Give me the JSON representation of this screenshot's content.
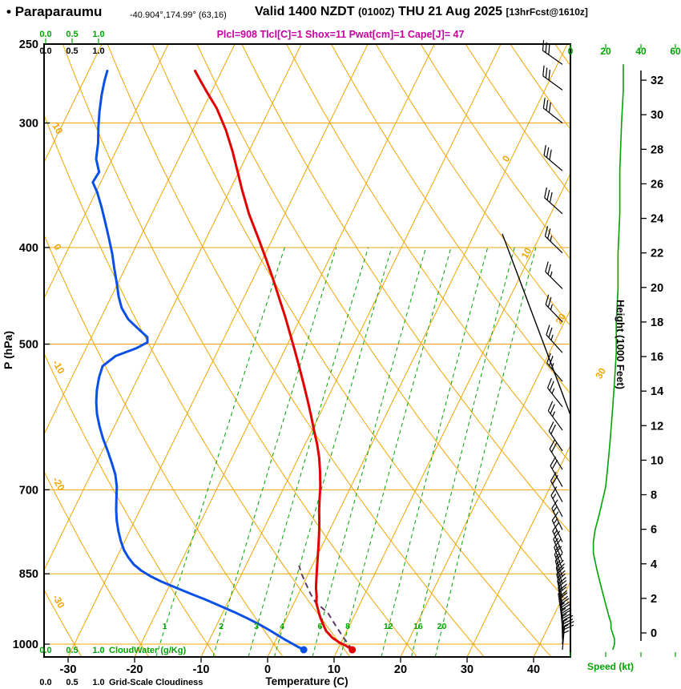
{
  "header": {
    "bullet": "•",
    "station": "Paraparaumu",
    "coords": "-40.904°,174.99°",
    "grid_ref": "(63,16)",
    "valid_prefix": "Valid 1400 NZDT",
    "valid_utc": "(0100Z)",
    "valid_date": "THU 21 Aug 2025",
    "forecast_ref": "[13hrFcst@1610z]",
    "params_line": "Plcl=908 Tlcl[C]=1 Shox=11 Pwat[cm]=1 Cape[J]= 47"
  },
  "colors": {
    "orange": "#f0a500",
    "green": "#00a400",
    "red": "#e10000",
    "blue": "#0a50e6",
    "magenta": "#c800a0",
    "parcel": "#5d3a66",
    "black": "#000000"
  },
  "chart_data": {
    "type": "skewt_log_p_sounding",
    "pressure_axis": {
      "label": "P (hPa)",
      "ticks": [
        250,
        300,
        400,
        500,
        700,
        850,
        1000
      ],
      "range": [
        250,
        1030
      ]
    },
    "temperature_axis": {
      "label": "Temperature (C)",
      "ticks": [
        -30,
        -20,
        -10,
        0,
        10,
        20,
        30,
        40
      ]
    },
    "height_axis": {
      "label": "Height (1000 Feet)",
      "ticks": [
        0,
        2,
        4,
        6,
        8,
        10,
        12,
        14,
        16,
        18,
        20,
        22,
        24,
        26,
        28,
        30,
        32
      ]
    },
    "speed_axis": {
      "label": "Speed (kt)",
      "ticks": [
        0,
        20,
        40,
        60
      ]
    },
    "cloudwater_axis": {
      "label": "CloudWater (g/Kg)",
      "ticks": [
        "0.0",
        "0.5",
        "1.0"
      ]
    },
    "cloudiness_axis": {
      "label": "Grid-Scale Cloudiness",
      "ticks": [
        "0.0",
        "0.5",
        "1.0"
      ]
    },
    "isotherm_inplot_labels": [
      0,
      10,
      20,
      30
    ],
    "dry_adiabat_labels": [
      10,
      0,
      -10,
      -20,
      -30
    ],
    "mixing_ratio_lines": [
      1,
      2,
      3,
      4,
      6,
      8,
      12,
      16,
      20
    ],
    "surface": {
      "pressure_hpa": 1013,
      "temp_c": 12.2,
      "dewpoint_c": 4.9
    },
    "temperature_profile": [
      [
        1013,
        12.2
      ],
      [
        1004,
        11.0
      ],
      [
        996,
        9.7
      ],
      [
        985,
        8.3
      ],
      [
        970,
        6.9
      ],
      [
        956,
        6.0
      ],
      [
        940,
        5.0
      ],
      [
        925,
        4.2
      ],
      [
        910,
        3.4
      ],
      [
        895,
        2.9
      ],
      [
        878,
        2.2
      ],
      [
        860,
        1.6
      ],
      [
        845,
        1.1
      ],
      [
        830,
        0.6
      ],
      [
        815,
        0.1
      ],
      [
        800,
        -0.4
      ],
      [
        778,
        -1.2
      ],
      [
        755,
        -2.1
      ],
      [
        735,
        -3.0
      ],
      [
        715,
        -3.8
      ],
      [
        695,
        -4.6
      ],
      [
        672,
        -5.7
      ],
      [
        650,
        -6.9
      ],
      [
        630,
        -8.2
      ],
      [
        610,
        -9.7
      ],
      [
        590,
        -11.2
      ],
      [
        570,
        -12.8
      ],
      [
        550,
        -14.5
      ],
      [
        530,
        -16.3
      ],
      [
        510,
        -18.2
      ],
      [
        490,
        -20.2
      ],
      [
        470,
        -22.3
      ],
      [
        450,
        -24.6
      ],
      [
        430,
        -27.0
      ],
      [
        410,
        -29.6
      ],
      [
        390,
        -32.4
      ],
      [
        370,
        -35.4
      ],
      [
        350,
        -38.2
      ],
      [
        335,
        -40.3
      ],
      [
        320,
        -42.5
      ],
      [
        305,
        -45.0
      ],
      [
        290,
        -48.0
      ],
      [
        280,
        -50.5
      ],
      [
        272,
        -52.5
      ],
      [
        266,
        -54.0
      ]
    ],
    "dewpoint_profile": [
      [
        1013,
        4.9
      ],
      [
        1006,
        3.8
      ],
      [
        998,
        2.6
      ],
      [
        990,
        1.4
      ],
      [
        980,
        0.0
      ],
      [
        968,
        -1.7
      ],
      [
        955,
        -3.7
      ],
      [
        942,
        -5.9
      ],
      [
        928,
        -8.4
      ],
      [
        915,
        -11.0
      ],
      [
        902,
        -13.6
      ],
      [
        890,
        -16.2
      ],
      [
        878,
        -18.8
      ],
      [
        866,
        -21.4
      ],
      [
        855,
        -23.5
      ],
      [
        844,
        -25.3
      ],
      [
        832,
        -26.9
      ],
      [
        818,
        -28.3
      ],
      [
        804,
        -29.5
      ],
      [
        788,
        -30.6
      ],
      [
        770,
        -31.7
      ],
      [
        752,
        -32.7
      ],
      [
        733,
        -33.6
      ],
      [
        714,
        -34.4
      ],
      [
        695,
        -35.2
      ],
      [
        676,
        -36.3
      ],
      [
        658,
        -37.7
      ],
      [
        640,
        -39.2
      ],
      [
        622,
        -40.8
      ],
      [
        605,
        -42.2
      ],
      [
        588,
        -43.5
      ],
      [
        572,
        -44.5
      ],
      [
        556,
        -45.3
      ],
      [
        540,
        -45.9
      ],
      [
        526,
        -46.2
      ],
      [
        514,
        -45.0
      ],
      [
        505,
        -42.5
      ],
      [
        498,
        -41.2
      ],
      [
        492,
        -41.6
      ],
      [
        483,
        -43.5
      ],
      [
        472,
        -45.8
      ],
      [
        460,
        -47.6
      ],
      [
        448,
        -48.9
      ],
      [
        434,
        -50.2
      ],
      [
        420,
        -51.6
      ],
      [
        406,
        -53.0
      ],
      [
        392,
        -54.6
      ],
      [
        378,
        -56.3
      ],
      [
        364,
        -58.1
      ],
      [
        352,
        -59.8
      ],
      [
        344,
        -61.2
      ],
      [
        336,
        -61.0
      ],
      [
        326,
        -62.4
      ],
      [
        314,
        -63.3
      ],
      [
        303,
        -64.4
      ],
      [
        292,
        -65.4
      ],
      [
        281,
        -66.3
      ],
      [
        272,
        -66.9
      ],
      [
        266,
        -67.2
      ]
    ],
    "parcel_path": [
      [
        1013,
        12.2
      ],
      [
        985,
        10.0
      ],
      [
        955,
        7.7
      ],
      [
        930,
        5.8
      ],
      [
        908,
        3.2
      ],
      [
        890,
        1.8
      ],
      [
        870,
        0.4
      ],
      [
        850,
        -1.0
      ],
      [
        834,
        -2.0
      ]
    ],
    "wind_profile_kt": [
      [
        1013,
        24,
        5
      ],
      [
        1000,
        25,
        3
      ],
      [
        988,
        25,
        360
      ],
      [
        976,
        24,
        358
      ],
      [
        964,
        23,
        355
      ],
      [
        952,
        23,
        352
      ],
      [
        940,
        22,
        350
      ],
      [
        926,
        21,
        350
      ],
      [
        912,
        20,
        348
      ],
      [
        898,
        19,
        346
      ],
      [
        884,
        18,
        345
      ],
      [
        870,
        17,
        343
      ],
      [
        856,
        16,
        341
      ],
      [
        842,
        15,
        340
      ],
      [
        826,
        14,
        338
      ],
      [
        810,
        13,
        336
      ],
      [
        790,
        13,
        335
      ],
      [
        768,
        14,
        334
      ],
      [
        745,
        16,
        332
      ],
      [
        720,
        18,
        331
      ],
      [
        695,
        20,
        330
      ],
      [
        668,
        21,
        328
      ],
      [
        640,
        22,
        326
      ],
      [
        610,
        23,
        324
      ],
      [
        578,
        24,
        322
      ],
      [
        545,
        25,
        320
      ],
      [
        510,
        26,
        318
      ],
      [
        475,
        26,
        316
      ],
      [
        440,
        27,
        315
      ],
      [
        405,
        27,
        314
      ],
      [
        370,
        28,
        312
      ],
      [
        335,
        28,
        310
      ],
      [
        300,
        29,
        308
      ],
      [
        278,
        30,
        306
      ],
      [
        262,
        30,
        305
      ]
    ],
    "diagonal_reference_line": true
  }
}
